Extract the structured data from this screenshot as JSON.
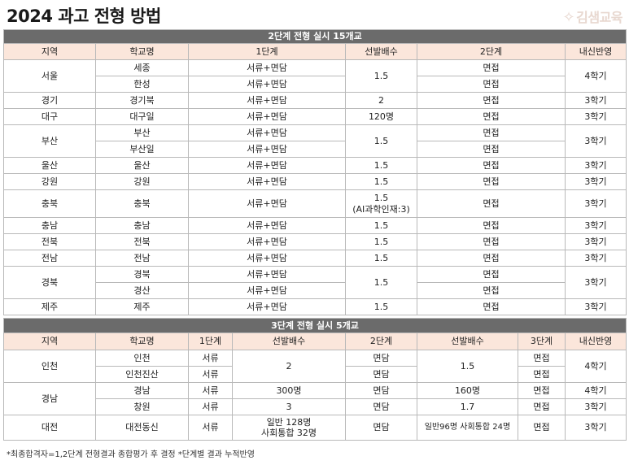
{
  "title": "2024 과고 전형 방법",
  "logo": "김샘교육",
  "t1": {
    "band": "2단계 전형 실시 15개교",
    "headers": [
      "지역",
      "학교명",
      "1단계",
      "선발배수",
      "2단계",
      "내신반영"
    ],
    "rows": [
      [
        "서울",
        "세종",
        "서류+면담",
        "1.5",
        "면접",
        "4학기"
      ],
      [
        "",
        "한성",
        "서류+면담",
        "",
        "면접",
        ""
      ],
      [
        "경기",
        "경기북",
        "서류+면담",
        "2",
        "면접",
        "3학기"
      ],
      [
        "대구",
        "대구일",
        "서류+면담",
        "120명",
        "면접",
        "3학기"
      ],
      [
        "부산",
        "부산",
        "서류+면담",
        "1.5",
        "면접",
        "3학기"
      ],
      [
        "",
        "부산일",
        "서류+면담",
        "",
        "면접",
        ""
      ],
      [
        "울산",
        "울산",
        "서류+면담",
        "1.5",
        "면접",
        "3학기"
      ],
      [
        "강원",
        "강원",
        "서류+면담",
        "1.5",
        "면접",
        "3학기"
      ],
      [
        "충북",
        "충북",
        "서류+면담",
        "1.5",
        "면접",
        "3학기"
      ],
      [
        "충남",
        "충남",
        "서류+면담",
        "1.5",
        "면접",
        "3학기"
      ],
      [
        "전북",
        "전북",
        "서류+면담",
        "1.5",
        "면접",
        "3학기"
      ],
      [
        "전남",
        "전남",
        "서류+면담",
        "1.5",
        "면접",
        "3학기"
      ],
      [
        "경북",
        "경북",
        "서류+면담",
        "1.5",
        "면접",
        "3학기"
      ],
      [
        "",
        "경산",
        "서류+면담",
        "",
        "면접",
        ""
      ],
      [
        "제주",
        "제주",
        "서류+면담",
        "1.5",
        "면접",
        "3학기"
      ]
    ],
    "chungbuk_note": "(AI과학인재:3)"
  },
  "t2": {
    "band": "3단계 전형 실시 5개교",
    "headers": [
      "지역",
      "학교명",
      "1단계",
      "선발배수",
      "2단계",
      "선발배수",
      "3단계",
      "내신반영"
    ],
    "rows": [
      [
        "인천",
        "인천",
        "서류",
        "2",
        "면담",
        "1.5",
        "면접",
        "4학기"
      ],
      [
        "",
        "인천진산",
        "서류",
        "",
        "면담",
        "",
        "면접",
        ""
      ],
      [
        "경남",
        "경남",
        "서류",
        "300명",
        "면담",
        "160명",
        "면접",
        "4학기"
      ],
      [
        "",
        "창원",
        "서류",
        "3",
        "면담",
        "1.7",
        "면접",
        "3학기"
      ],
      [
        "대전",
        "대전동신",
        "서류",
        "일반 128명",
        "면담",
        "일반96명 사회통합 24명",
        "면접",
        "3학기"
      ]
    ],
    "daejeon_extra": "사회통합 32명"
  },
  "footnote": "*최종합격자=1,2단계 전형결과 종합평가 후 결정 *단계별 결과 누적반영"
}
